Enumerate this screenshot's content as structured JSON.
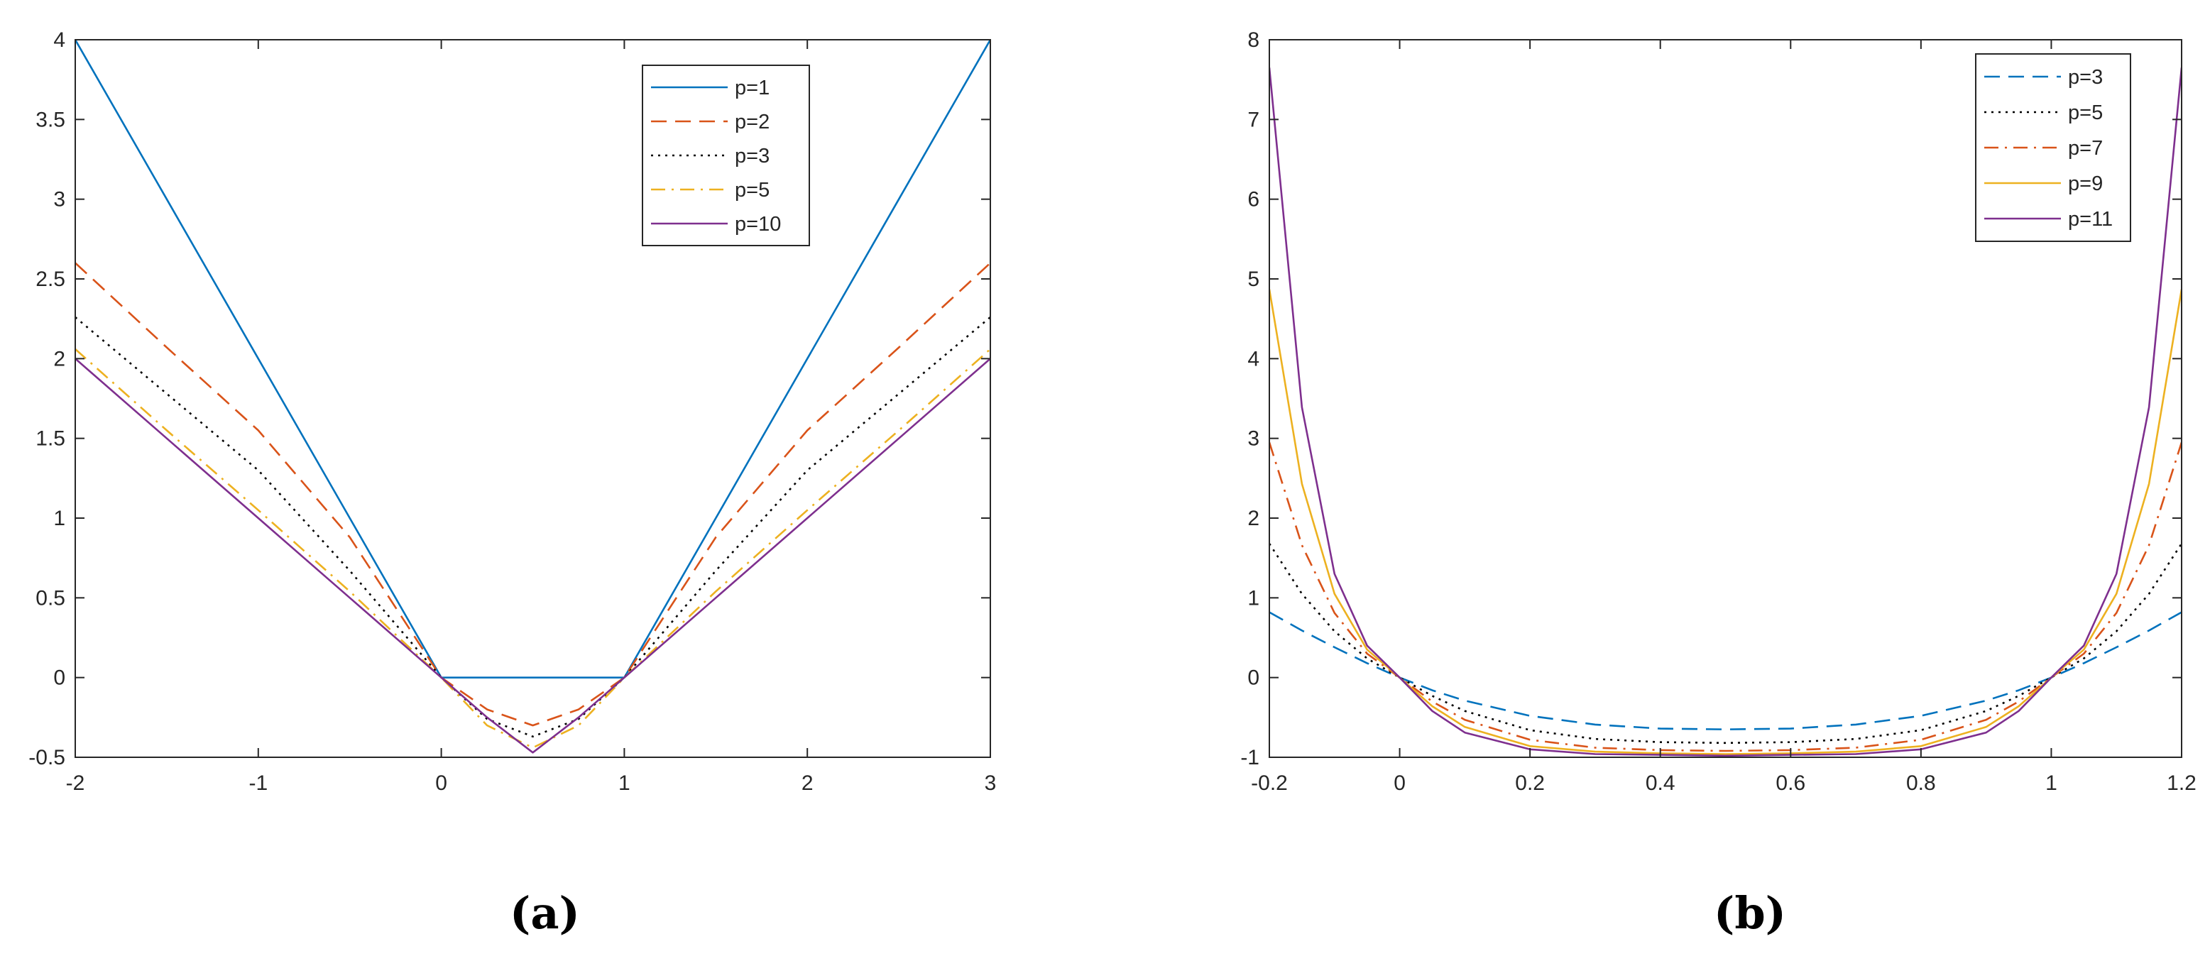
{
  "chart_data": [
    {
      "type": "line",
      "panel": "a",
      "caption": "(a)",
      "xlim": [
        -2,
        3
      ],
      "ylim": [
        -0.5,
        4
      ],
      "xticks": [
        "-2",
        "-1",
        "0",
        "1",
        "2",
        "3"
      ],
      "yticks": [
        "-0.5",
        "0",
        "0.5",
        "1",
        "1.5",
        "2",
        "2.5",
        "3",
        "3.5",
        "4"
      ],
      "grid": false,
      "legend_position": "top-right",
      "x": [
        -2,
        -1.5,
        -1,
        -0.5,
        0,
        0.25,
        0.5,
        0.75,
        1,
        1.5,
        2,
        2.5,
        3
      ],
      "series": [
        {
          "name": "p=1",
          "style": "solid",
          "color": "#0072BD",
          "values": [
            4,
            3,
            2,
            1,
            0,
            0,
            0,
            0,
            0,
            1,
            2,
            3,
            4
          ]
        },
        {
          "name": "p=2",
          "style": "dashed",
          "color": "#D95319",
          "values": [
            2.6,
            2.07,
            1.55,
            0.88,
            0.0,
            -0.2,
            -0.3,
            -0.2,
            0.0,
            0.88,
            1.55,
            2.07,
            2.6
          ]
        },
        {
          "name": "p=3",
          "style": "dotted",
          "color": "#000000",
          "values": [
            2.26,
            1.78,
            1.3,
            0.67,
            0.0,
            -0.26,
            -0.37,
            -0.26,
            0.0,
            0.67,
            1.3,
            1.78,
            2.26
          ]
        },
        {
          "name": "p=5",
          "style": "dashdot",
          "color": "#EDB120",
          "values": [
            2.06,
            1.55,
            1.05,
            0.54,
            0.0,
            -0.3,
            -0.44,
            -0.3,
            0.0,
            0.54,
            1.05,
            1.55,
            2.06
          ]
        },
        {
          "name": "p=10",
          "style": "solid",
          "color": "#7E2F8E",
          "values": [
            2.0,
            1.5,
            1.0,
            0.5,
            0.0,
            -0.25,
            -0.47,
            -0.25,
            0.0,
            0.5,
            1.0,
            1.5,
            2.0
          ]
        }
      ]
    },
    {
      "type": "line",
      "panel": "b",
      "caption": "(b)",
      "xlim": [
        -0.2,
        1.2
      ],
      "ylim": [
        -1,
        8
      ],
      "xticks": [
        "-0.2",
        "0",
        "0.2",
        "0.4",
        "0.6",
        "0.8",
        "1",
        "1.2"
      ],
      "yticks": [
        "-1",
        "0",
        "1",
        "2",
        "3",
        "4",
        "5",
        "6",
        "7",
        "8"
      ],
      "grid": false,
      "legend_position": "top-right",
      "x": [
        -0.2,
        -0.15,
        -0.1,
        -0.05,
        0,
        0.05,
        0.1,
        0.2,
        0.3,
        0.4,
        0.5,
        0.6,
        0.7,
        0.8,
        0.9,
        0.95,
        1.0,
        1.05,
        1.1,
        1.15,
        1.2
      ],
      "series": [
        {
          "name": "p=3",
          "style": "dashed",
          "color": "#0072BD",
          "values": [
            0.82,
            0.59,
            0.38,
            0.18,
            0.0,
            -0.16,
            -0.29,
            -0.48,
            -0.59,
            -0.64,
            -0.65,
            -0.64,
            -0.59,
            -0.48,
            -0.29,
            -0.16,
            0.0,
            0.18,
            0.38,
            0.59,
            0.82
          ]
        },
        {
          "name": "p=5",
          "style": "dotted",
          "color": "#000000",
          "values": [
            1.68,
            1.05,
            0.58,
            0.24,
            0.0,
            -0.23,
            -0.42,
            -0.66,
            -0.77,
            -0.81,
            -0.82,
            -0.81,
            -0.77,
            -0.66,
            -0.42,
            -0.23,
            0.0,
            0.24,
            0.58,
            1.05,
            1.68
          ]
        },
        {
          "name": "p=7",
          "style": "dashdot",
          "color": "#D95319",
          "values": [
            2.95,
            1.66,
            0.81,
            0.3,
            0.0,
            -0.3,
            -0.53,
            -0.78,
            -0.88,
            -0.91,
            -0.92,
            -0.91,
            -0.88,
            -0.78,
            -0.53,
            -0.3,
            0.0,
            0.3,
            0.81,
            1.66,
            2.95
          ]
        },
        {
          "name": "p=9",
          "style": "solid",
          "color": "#EDB120",
          "values": [
            4.87,
            2.43,
            1.05,
            0.35,
            0.0,
            -0.36,
            -0.62,
            -0.86,
            -0.93,
            -0.95,
            -0.96,
            -0.95,
            -0.93,
            -0.86,
            -0.62,
            -0.36,
            0.0,
            0.35,
            1.05,
            2.43,
            4.87
          ]
        },
        {
          "name": "p=11",
          "style": "solid",
          "color": "#7E2F8E",
          "values": [
            7.65,
            3.39,
            1.3,
            0.4,
            0.0,
            -0.42,
            -0.69,
            -0.9,
            -0.96,
            -0.97,
            -0.98,
            -0.97,
            -0.96,
            -0.9,
            -0.69,
            -0.42,
            0.0,
            0.4,
            1.3,
            3.39,
            7.65
          ]
        }
      ]
    }
  ]
}
